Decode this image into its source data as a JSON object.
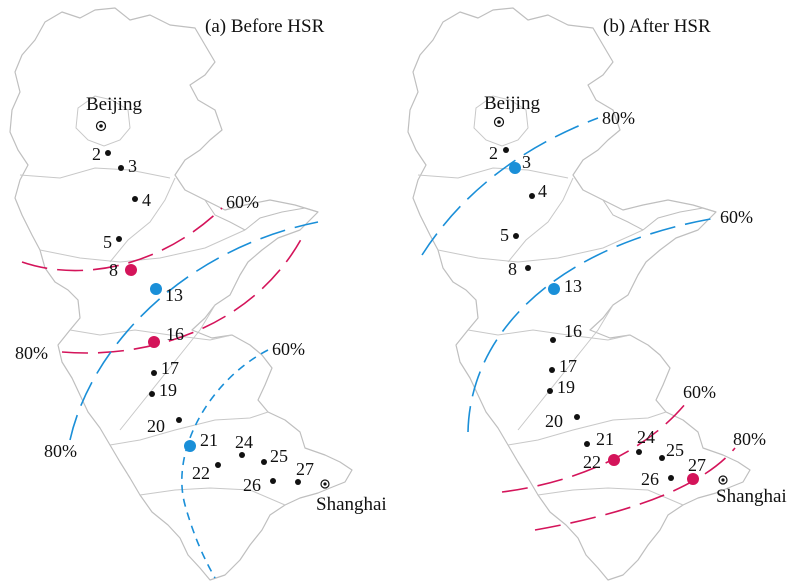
{
  "panels": [
    {
      "title": "(a) Before HSR",
      "cities": {
        "beijing": "Beijing",
        "shanghai": "Shanghai"
      },
      "stations": [
        {
          "id": "2",
          "kind": "small"
        },
        {
          "id": "3",
          "kind": "small"
        },
        {
          "id": "4",
          "kind": "small"
        },
        {
          "id": "5",
          "kind": "small"
        },
        {
          "id": "8",
          "kind": "magenta"
        },
        {
          "id": "13",
          "kind": "blue"
        },
        {
          "id": "16",
          "kind": "magenta"
        },
        {
          "id": "17",
          "kind": "small"
        },
        {
          "id": "19",
          "kind": "small"
        },
        {
          "id": "20",
          "kind": "small"
        },
        {
          "id": "21",
          "kind": "blue"
        },
        {
          "id": "22",
          "kind": "small"
        },
        {
          "id": "24",
          "kind": "small"
        },
        {
          "id": "25",
          "kind": "small"
        },
        {
          "id": "26",
          "kind": "small"
        },
        {
          "id": "27",
          "kind": "small"
        }
      ],
      "contours": [
        {
          "label": "60%",
          "color": "#d4145a",
          "style": "long-dash"
        },
        {
          "label": "80%",
          "color": "#d4145a",
          "style": "long-dash"
        },
        {
          "label": "80%",
          "color": "#1a8fd8",
          "style": "long-dash"
        },
        {
          "label": "60%",
          "color": "#1a8fd8",
          "style": "short-dash"
        }
      ]
    },
    {
      "title": "(b) After HSR",
      "cities": {
        "beijing": "Beijing",
        "shanghai": "Shanghai"
      },
      "stations": [
        {
          "id": "2",
          "kind": "small"
        },
        {
          "id": "3",
          "kind": "blue"
        },
        {
          "id": "4",
          "kind": "small"
        },
        {
          "id": "5",
          "kind": "small"
        },
        {
          "id": "8",
          "kind": "small"
        },
        {
          "id": "13",
          "kind": "blue"
        },
        {
          "id": "16",
          "kind": "small"
        },
        {
          "id": "17",
          "kind": "small"
        },
        {
          "id": "19",
          "kind": "small"
        },
        {
          "id": "20",
          "kind": "small"
        },
        {
          "id": "21",
          "kind": "small"
        },
        {
          "id": "22",
          "kind": "magenta"
        },
        {
          "id": "24",
          "kind": "small"
        },
        {
          "id": "25",
          "kind": "small"
        },
        {
          "id": "26",
          "kind": "small"
        },
        {
          "id": "27",
          "kind": "magenta"
        }
      ],
      "contours": [
        {
          "label": "80%",
          "color": "#1a8fd8",
          "style": "long-dash"
        },
        {
          "label": "60%",
          "color": "#1a8fd8",
          "style": "long-dash"
        },
        {
          "label": "60%",
          "color": "#d4145a",
          "style": "long-dash"
        },
        {
          "label": "80%",
          "color": "#d4145a",
          "style": "long-dash"
        }
      ]
    }
  ],
  "colors": {
    "blue": "#1a8fd8",
    "magenta": "#d4145a",
    "dot": "#111111",
    "outline": "#bfbfbf"
  }
}
